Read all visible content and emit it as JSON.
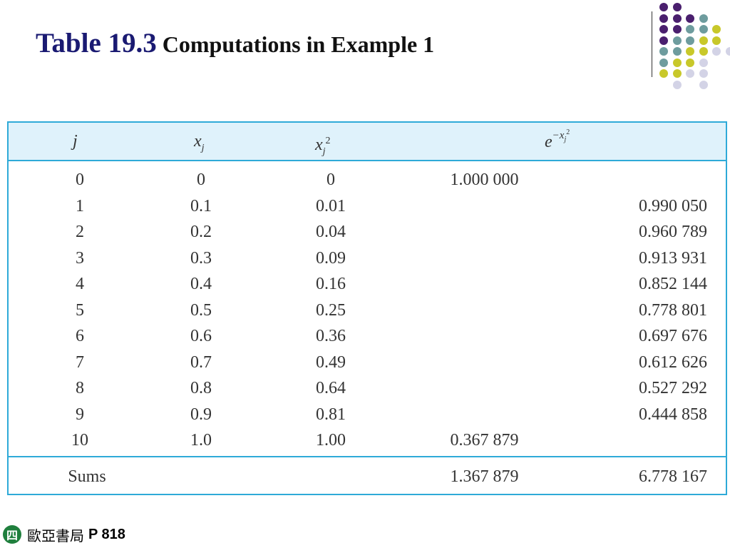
{
  "title": {
    "number": "Table 19.3",
    "text": "Computations in Example 1"
  },
  "table": {
    "headers": {
      "j": "j",
      "xj": "x",
      "xj_sub": "j",
      "xj2": "x",
      "xj2_sub": "j",
      "xj2_sup": "2",
      "exp_base": "e",
      "exp_power": "−x",
      "exp_power_sub": "j",
      "exp_power_sup": "2"
    },
    "rows": [
      {
        "j": "0",
        "x": "0",
        "x2": "0",
        "e_end": "1.000 000",
        "e_mid": ""
      },
      {
        "j": "1",
        "x": "0.1",
        "x2": "0.01",
        "e_end": "",
        "e_mid": "0.990 050"
      },
      {
        "j": "2",
        "x": "0.2",
        "x2": "0.04",
        "e_end": "",
        "e_mid": "0.960 789"
      },
      {
        "j": "3",
        "x": "0.3",
        "x2": "0.09",
        "e_end": "",
        "e_mid": "0.913 931"
      },
      {
        "j": "4",
        "x": "0.4",
        "x2": "0.16",
        "e_end": "",
        "e_mid": "0.852 144"
      },
      {
        "j": "5",
        "x": "0.5",
        "x2": "0.25",
        "e_end": "",
        "e_mid": "0.778 801"
      },
      {
        "j": "6",
        "x": "0.6",
        "x2": "0.36",
        "e_end": "",
        "e_mid": "0.697 676"
      },
      {
        "j": "7",
        "x": "0.7",
        "x2": "0.49",
        "e_end": "",
        "e_mid": "0.612 626"
      },
      {
        "j": "8",
        "x": "0.8",
        "x2": "0.64",
        "e_end": "",
        "e_mid": "0.527 292"
      },
      {
        "j": "9",
        "x": "0.9",
        "x2": "0.81",
        "e_end": "",
        "e_mid": "0.444 858"
      },
      {
        "j": "10",
        "x": "1.0",
        "x2": "1.00",
        "e_end": "0.367 879",
        "e_mid": ""
      }
    ],
    "sums": {
      "label": "Sums",
      "e_end": "1.367 879",
      "e_mid": "6.778 167"
    }
  },
  "footer": {
    "logo_char": "四",
    "publisher": "歐亞書局",
    "page": "P 818"
  },
  "colors": {
    "title": "#1a1a72",
    "border": "#2eaad8",
    "header_bg": "#dff2fb",
    "dot_purple": "#4a1f6e",
    "dot_teal": "#6e9c9e",
    "dot_yellow": "#c8c82a",
    "dot_lavender": "#d3d3e6",
    "logo": "#1f7f3d"
  }
}
